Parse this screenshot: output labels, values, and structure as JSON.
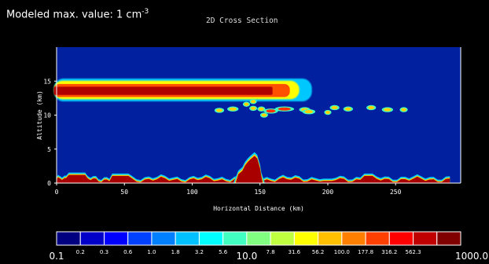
{
  "header": {
    "prefix": "Modeled max. value: 1 cm",
    "exponent": "-3"
  },
  "chart_data": {
    "type": "heatmap",
    "title": "2D Cross Section",
    "xlabel": "Horizontal Distance (km)",
    "ylabel": "Altitude (km)",
    "xlim": [
      0,
      298
    ],
    "ylim": [
      0,
      20
    ],
    "x_ticks": [
      "0",
      "50",
      "100",
      "150",
      "200",
      "250"
    ],
    "x_tick_values": [
      0,
      50,
      100,
      150,
      200,
      250
    ],
    "y_ticks": [
      "0",
      "5",
      "10",
      "15"
    ],
    "y_tick_values": [
      0,
      5,
      10,
      15
    ],
    "background_color": "#00209f",
    "features": [
      {
        "name": "upper layer",
        "x": [
          -2,
          172
        ],
        "y_center": 13.7,
        "thickness": 1.6
      },
      {
        "name": "surface layer",
        "x": [
          0,
          290
        ],
        "y_top": 1.0
      },
      {
        "name": "plume",
        "x": [
          132,
          150
        ],
        "y_top": 4.0
      }
    ],
    "colorbar": {
      "colors": [
        "#000080",
        "#0000c8",
        "#0000ff",
        "#0040ff",
        "#0080ff",
        "#00c0ff",
        "#00ffff",
        "#40ffc0",
        "#80ff80",
        "#c0ff40",
        "#ffff00",
        "#ffc000",
        "#ff8000",
        "#ff4000",
        "#ff0000",
        "#c00000",
        "#800000"
      ],
      "minor_labels": [
        "0.2",
        "0.3",
        "0.6",
        "1.0",
        "1.8",
        "3.2",
        "5.6",
        "7.8",
        "31.6",
        "56.2",
        "100.0",
        "177.8",
        "316.2",
        "562.3"
      ],
      "major_labels": [
        "0.1",
        "10.0",
        "1000.0"
      ]
    }
  }
}
